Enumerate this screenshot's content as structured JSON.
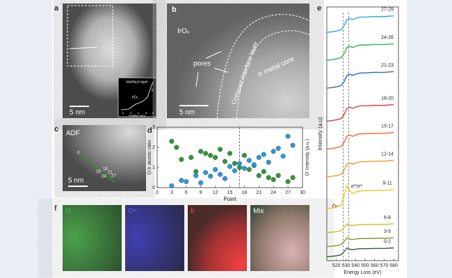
{
  "panels": {
    "a": {
      "label": "a",
      "scale": "5 nm",
      "inset_title": "Interface layer",
      "inset_irox": "IrOₓ",
      "inset_ir": "Ir",
      "inset_xlabel": "Position (nm)",
      "inset_xticks": [
        "0",
        "2",
        "4",
        "6",
        "8"
      ]
    },
    "b": {
      "label": "b",
      "irox": "IrOₓ",
      "pores": "pores",
      "layer": "Compact interface layer",
      "core": "Ir metal core",
      "scale": "5 nm"
    },
    "c": {
      "label": "c",
      "mode": "ADF",
      "scale": "5 nm",
      "points": [
        "0",
        "15",
        "18",
        "21",
        "24",
        "27"
      ]
    },
    "f": {
      "label": "f",
      "maps": [
        "O",
        "Oⁿ⁻",
        "Ir",
        "Mix"
      ]
    }
  },
  "chart_data": [
    {
      "type": "scatter",
      "panel_label": "d",
      "xlabel": "Point",
      "ylabel": "O:Ir atomic ratio",
      "y2label": "O' Intensity (a.u.)",
      "xlim": [
        0,
        30
      ],
      "xticks": [
        0,
        3,
        6,
        9,
        12,
        15,
        18,
        21,
        24,
        27,
        30
      ],
      "ylim": [
        0,
        3
      ],
      "yticks": [
        0,
        1,
        2,
        3
      ],
      "y2lim": [
        0,
        10
      ],
      "vline": 17,
      "series": [
        {
          "color": "#2f9a2f",
          "x": [
            3,
            4,
            5,
            7,
            8,
            9,
            10,
            11,
            12,
            13,
            14,
            15,
            16,
            17,
            18,
            19,
            20,
            21,
            22,
            23,
            24,
            25,
            27,
            28
          ],
          "values": [
            2.3,
            2.0,
            1.4,
            1.5,
            0.8,
            1.8,
            1.7,
            1.6,
            1.5,
            1.9,
            1.3,
            1.7,
            1.2,
            1.0,
            1.6,
            0.9,
            1.1,
            0.6,
            0.8,
            0.5,
            0.4,
            0.6,
            0.3,
            0.5
          ]
        },
        {
          "color": "#2a9ae0",
          "axis": "y2",
          "x": [
            3,
            5,
            6,
            8,
            9,
            10,
            11,
            12,
            13,
            14,
            15,
            16,
            17,
            18,
            19,
            20,
            21,
            22,
            23,
            24,
            25,
            26,
            27,
            28
          ],
          "values": [
            0.3,
            1.2,
            1.0,
            2.0,
            0.8,
            2.5,
            1.9,
            3.0,
            2.2,
            1.5,
            3.5,
            2.8,
            4.0,
            3.2,
            4.5,
            3.8,
            5.0,
            5.5,
            4.2,
            6.0,
            6.5,
            5.2,
            8.5,
            7.0
          ]
        }
      ]
    },
    {
      "type": "line",
      "panel_label": "e",
      "xlabel": "Energy Loss (eV)",
      "ylabel": "Intensity (a.u)",
      "xlim": [
        510,
        585
      ],
      "xticks": [
        520,
        530,
        540,
        550,
        560,
        570,
        580
      ],
      "ylim": [
        0,
        10
      ],
      "vlines": [
        527,
        533
      ],
      "annotations": [
        "Oⁿ⁻",
        "σ*/π*"
      ],
      "x": [
        510,
        515,
        520,
        525,
        528,
        531,
        534,
        537,
        540,
        545,
        550,
        560,
        570,
        580
      ],
      "series": [
        {
          "name": "0-2",
          "color": "#2e5e2e",
          "values": [
            0.15,
            0.17,
            0.19,
            0.23,
            0.35,
            0.5,
            0.45,
            0.43,
            0.45,
            0.47,
            0.47,
            0.48,
            0.48,
            0.5
          ]
        },
        {
          "name": "3-5",
          "color": "#7a9a2a",
          "values": [
            0.55,
            0.57,
            0.59,
            0.63,
            0.75,
            0.9,
            0.85,
            0.83,
            0.85,
            0.87,
            0.87,
            0.88,
            0.88,
            0.9
          ]
        },
        {
          "name": "6-8",
          "color": "#c8c020",
          "values": [
            1.1,
            1.12,
            1.14,
            1.18,
            1.3,
            1.45,
            1.4,
            1.38,
            1.4,
            1.42,
            1.42,
            1.43,
            1.43,
            1.45
          ]
        },
        {
          "name": "9-11",
          "color": "#f2c41c",
          "values": [
            2.05,
            2.07,
            2.1,
            2.17,
            2.55,
            2.95,
            2.75,
            2.65,
            2.7,
            2.75,
            2.75,
            2.77,
            2.77,
            2.8
          ]
        },
        {
          "name": "12-14",
          "color": "#f5962a",
          "values": [
            3.3,
            3.32,
            3.35,
            3.4,
            3.55,
            3.8,
            3.85,
            3.8,
            3.85,
            3.9,
            3.9,
            3.92,
            3.92,
            3.95
          ]
        },
        {
          "name": "15-17",
          "color": "#f26b2a",
          "values": [
            4.4,
            4.42,
            4.45,
            4.5,
            4.65,
            4.9,
            4.95,
            4.9,
            4.95,
            5,
            5,
            5.02,
            5.02,
            5.05
          ]
        },
        {
          "name": "18-20",
          "color": "#e8393a",
          "values": [
            5.5,
            5.52,
            5.55,
            5.6,
            5.75,
            6,
            6.05,
            6,
            6.05,
            6.1,
            6.1,
            6.12,
            6.12,
            6.15
          ]
        },
        {
          "name": "21-23",
          "color": "#1c6fbf",
          "values": [
            6.8,
            6.82,
            6.85,
            6.9,
            7.05,
            7.3,
            7.35,
            7.3,
            7.35,
            7.4,
            7.4,
            7.42,
            7.42,
            7.45
          ]
        },
        {
          "name": "24-26",
          "color": "#2bb34a",
          "values": [
            7.9,
            7.92,
            7.95,
            8,
            8.15,
            8.4,
            8.45,
            8.4,
            8.45,
            8.5,
            8.5,
            8.52,
            8.52,
            8.55
          ]
        },
        {
          "name": "27-29",
          "color": "#29a8e0",
          "values": [
            9,
            9.02,
            9.05,
            9.1,
            9.25,
            9.5,
            9.55,
            9.5,
            9.55,
            9.6,
            9.6,
            9.62,
            9.62,
            9.65
          ]
        }
      ]
    }
  ]
}
